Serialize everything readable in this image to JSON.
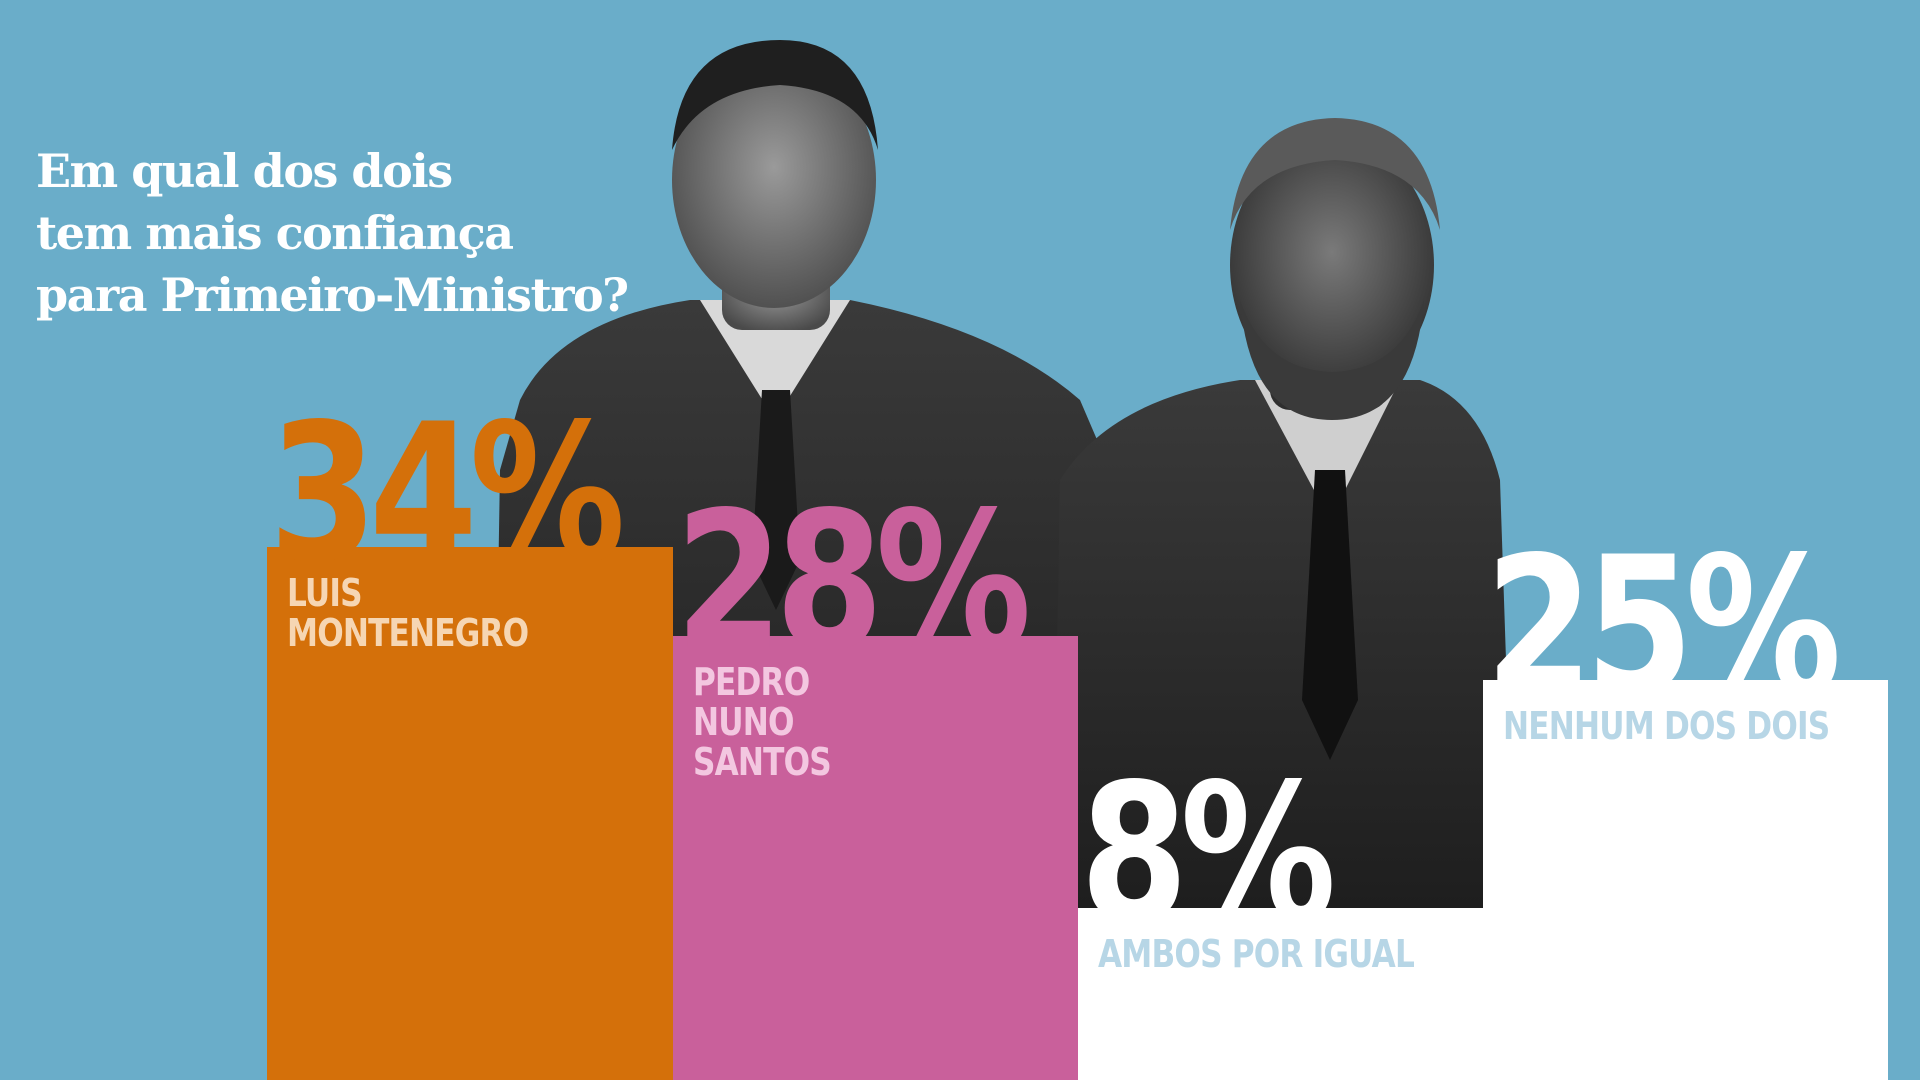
{
  "question": {
    "lines": [
      "Em qual dos dois",
      "tem mais confiança",
      "para Primeiro-Ministro?"
    ]
  },
  "chart_data": {
    "type": "bar",
    "title": "Em qual dos dois tem mais confiança para Primeiro-Ministro?",
    "categories": [
      "LUIS\nMONTENEGRO",
      "PEDRO\nNUNO\nSANTOS",
      "AMBOS POR IGUAL",
      "NENHUM DOS DOIS"
    ],
    "values": [
      34,
      28,
      8,
      25
    ],
    "value_labels": [
      "34%",
      "28%",
      "8%",
      "25%"
    ],
    "ylim": [
      0,
      100
    ],
    "grid": false,
    "legend": "none",
    "colors": {
      "bars": [
        "#d4700a",
        "#c9609b",
        "#ffffff",
        "#ffffff"
      ],
      "value_text": [
        "#d4700a",
        "#c9609b",
        "#ffffff",
        "#ffffff"
      ],
      "label_text": [
        "#f6d6b3",
        "#f3c7e0",
        "#b7d6e6",
        "#b7d6e6"
      ]
    }
  },
  "colors": {
    "background": "#6aadc9",
    "question_text": "#ffffff"
  }
}
